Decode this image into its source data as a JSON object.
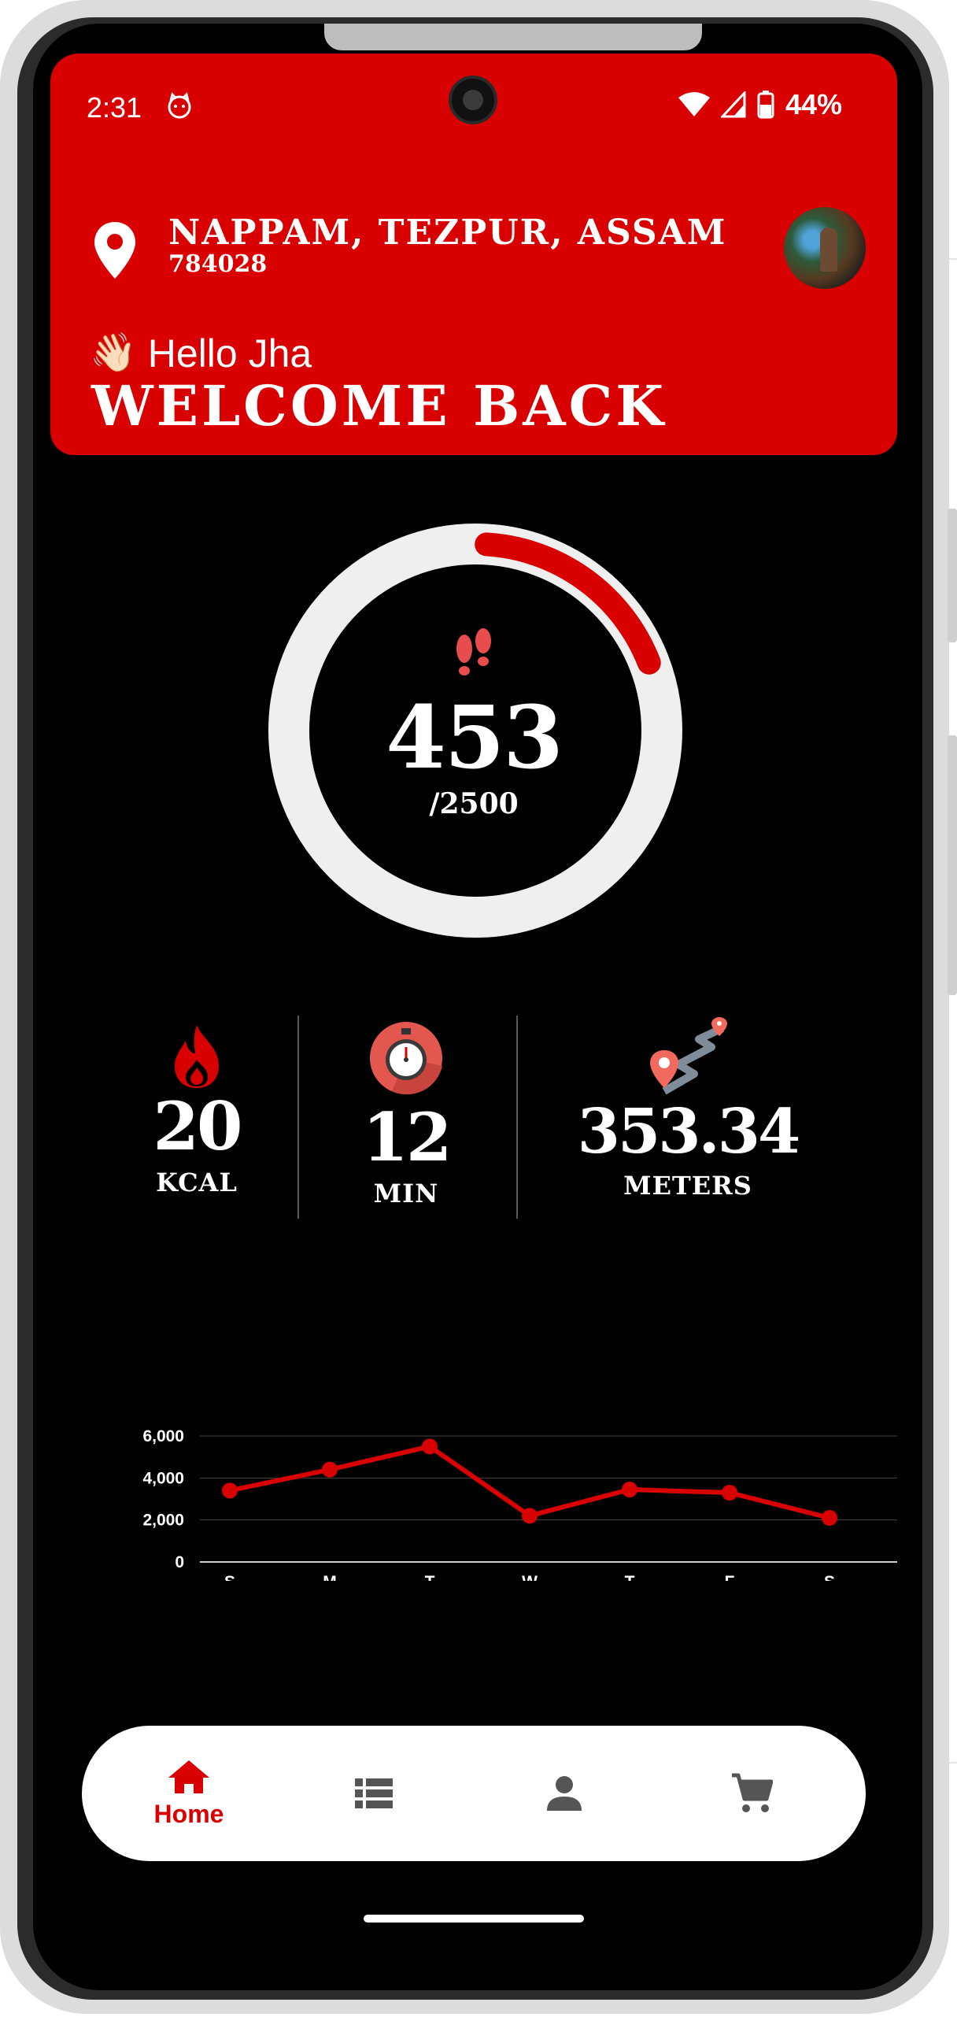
{
  "status_bar": {
    "time": "2:31",
    "battery": "44%"
  },
  "location": {
    "title": "NAPPAM, TEZPUR, ASSAM",
    "pincode": "784028"
  },
  "greeting": {
    "emoji": "👋🏻",
    "hello": "Hello Jha",
    "welcome": "WELCOME BACK"
  },
  "steps": {
    "value": "453",
    "goal_label": "/2500",
    "current": 453,
    "goal": 2500
  },
  "stats": [
    {
      "value": "20",
      "unit": "KCAL",
      "icon": "flame-icon"
    },
    {
      "value": "12",
      "unit": "MIN",
      "icon": "stopwatch-icon"
    },
    {
      "value": "353.34",
      "unit": "METERS",
      "icon": "route-icon"
    }
  ],
  "chart_data": {
    "type": "line",
    "categories": [
      "S",
      "M",
      "T",
      "W",
      "T",
      "F",
      "S"
    ],
    "series": [
      {
        "values": [
          3400,
          4400,
          5500,
          2200,
          3450,
          3300,
          2100
        ]
      }
    ],
    "yticks": [
      "0",
      "2,000",
      "4,000",
      "6,000"
    ],
    "ylim": [
      0,
      6000
    ],
    "grid": true,
    "color": "#d80000"
  },
  "nav": {
    "items": [
      {
        "label": "Home",
        "icon": "home-icon",
        "active": true
      },
      {
        "label": "",
        "icon": "list-icon"
      },
      {
        "label": "",
        "icon": "person-icon"
      },
      {
        "label": "",
        "icon": "cart-icon"
      }
    ]
  },
  "colors": {
    "accent": "#d80000",
    "background": "#000000",
    "ring_track": "#efefef"
  }
}
